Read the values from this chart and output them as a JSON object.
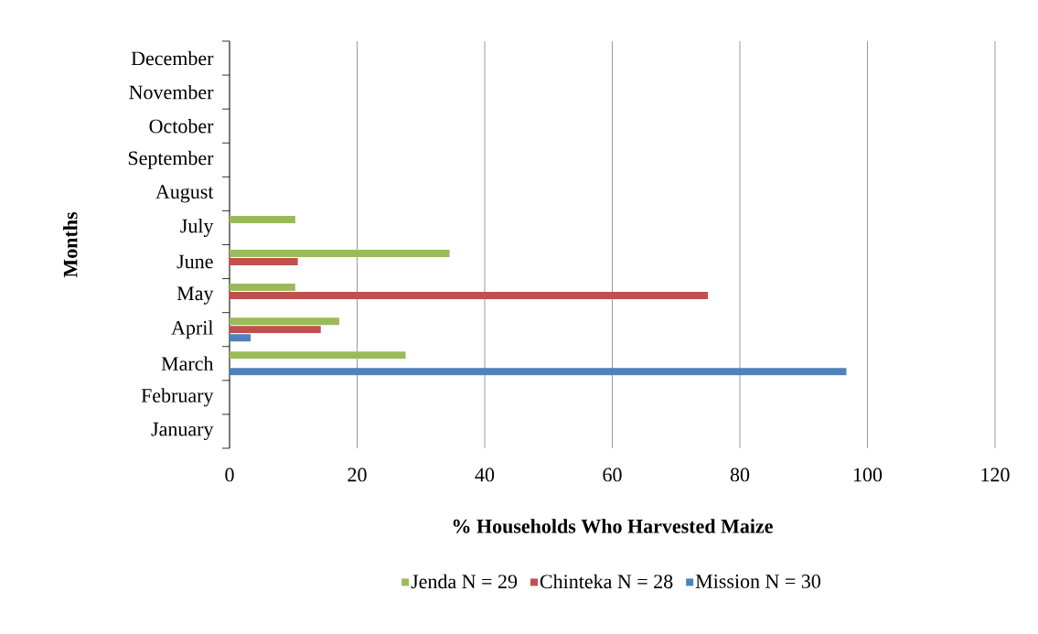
{
  "chart_data": {
    "type": "bar",
    "orientation": "horizontal",
    "xlabel": "% Households Who Harvested Maize",
    "ylabel": "Months",
    "categories": [
      "December",
      "November",
      "October",
      "September",
      "August",
      "July",
      "June",
      "May",
      "April",
      "March",
      "February",
      "January"
    ],
    "series": [
      {
        "name": "Jenda N = 29",
        "color": "#9bbb59",
        "values": [
          null,
          null,
          null,
          null,
          null,
          10.3,
          34.5,
          10.3,
          17.2,
          27.6,
          null,
          null
        ]
      },
      {
        "name": "Chinteka N = 28",
        "color": "#c0504d",
        "values": [
          null,
          null,
          null,
          null,
          null,
          null,
          10.7,
          75,
          14.3,
          null,
          null,
          null
        ]
      },
      {
        "name": "Mission N = 30",
        "color": "#4f81bd",
        "values": [
          null,
          null,
          null,
          null,
          null,
          null,
          null,
          null,
          3.3,
          96.7,
          null,
          null
        ]
      }
    ],
    "xlim": [
      0,
      120
    ],
    "xticks": [
      0,
      20,
      40,
      60,
      80,
      100,
      120
    ],
    "grid": "x",
    "legend": "bottom"
  }
}
